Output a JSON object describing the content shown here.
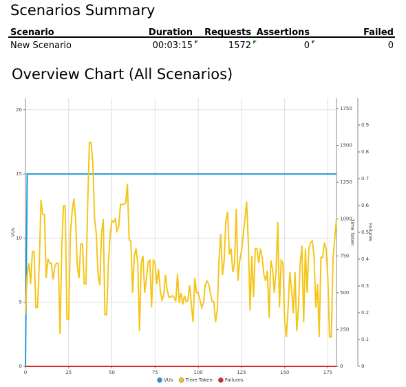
{
  "summary": {
    "title": "Scenarios Summary",
    "columns": [
      "Scenario",
      "Duration",
      "Requests",
      "Assertions",
      "Failed"
    ],
    "rows": [
      [
        "New Scenario",
        "00:03:15",
        "1572",
        "0",
        "0"
      ]
    ]
  },
  "chart_data": {
    "type": "line",
    "title": "Overview Chart (All Scenarios)",
    "y_label": "VUs",
    "y2_label": "Time Taken",
    "y3_label": "Failures",
    "xlim": [
      0,
      180
    ],
    "xticks": [
      0,
      25,
      50,
      75,
      100,
      125,
      150,
      175
    ],
    "ylim": [
      0,
      20.9
    ],
    "yticks": [
      0,
      5,
      10,
      15,
      20
    ],
    "y2lim": [
      0,
      1820
    ],
    "y2ticks": [
      0,
      250,
      500,
      750,
      1000,
      1250,
      1500,
      1750
    ],
    "y3lim": [
      0,
      1
    ],
    "y3ticks": [
      0,
      0.1,
      0.2,
      0.3,
      0.4,
      0.5,
      0.6,
      0.7,
      0.8,
      0.9
    ],
    "grid": true,
    "legend": "bottom",
    "series": [
      {
        "name": "VUs",
        "color": "#1e9bd7",
        "axis": "y",
        "x": [
          0,
          1,
          180
        ],
        "values": [
          0,
          15,
          15
        ]
      },
      {
        "name": "Time Taken",
        "color": "#f5c518",
        "axis": "y2",
        "x": [
          0,
          1,
          2,
          3,
          4,
          5,
          6,
          7,
          8,
          9,
          10,
          11,
          12,
          13,
          14,
          15,
          16,
          17,
          18,
          19,
          20,
          21,
          22,
          23,
          24,
          25,
          26,
          27,
          28,
          29,
          30,
          31,
          32,
          33,
          34,
          35,
          36,
          37,
          38,
          39,
          40,
          41,
          42,
          43,
          44,
          45,
          46,
          47,
          48,
          49,
          50,
          51,
          52,
          53,
          54,
          55,
          56,
          57,
          58,
          59,
          60,
          61,
          62,
          63,
          64,
          65,
          66,
          67,
          68,
          69,
          70,
          71,
          72,
          73,
          74,
          75,
          76,
          77,
          78,
          79,
          80,
          81,
          82,
          83,
          84,
          85,
          86,
          87,
          88,
          89,
          90,
          91,
          92,
          93,
          94,
          95,
          96,
          97,
          98,
          99,
          100,
          101,
          102,
          103,
          104,
          105,
          106,
          107,
          108,
          109,
          110,
          111,
          112,
          113,
          114,
          115,
          116,
          117,
          118,
          119,
          120,
          121,
          122,
          123,
          124,
          125,
          126,
          127,
          128,
          129,
          130,
          131,
          132,
          133,
          134,
          135,
          136,
          137,
          138,
          139,
          140,
          141,
          142,
          143,
          144,
          145,
          146,
          147,
          148,
          149,
          150,
          151,
          152,
          153,
          154,
          155,
          156,
          157,
          158,
          159,
          160,
          161,
          162,
          163,
          164,
          165,
          166,
          167,
          168,
          169,
          170,
          171,
          172,
          173,
          174,
          175,
          176,
          177,
          178,
          179,
          180
        ],
        "values": [
          350,
          620,
          700,
          560,
          780,
          780,
          400,
          400,
          700,
          1130,
          1030,
          1030,
          600,
          730,
          700,
          700,
          590,
          680,
          700,
          700,
          220,
          800,
          1090,
          1090,
          320,
          320,
          900,
          1050,
          1140,
          1000,
          680,
          600,
          830,
          830,
          560,
          560,
          1100,
          1520,
          1520,
          1380,
          1000,
          900,
          620,
          550,
          900,
          1000,
          350,
          350,
          700,
          890,
          990,
          980,
          1000,
          920,
          950,
          1100,
          1100,
          1100,
          1110,
          1240,
          860,
          850,
          500,
          750,
          800,
          700,
          240,
          700,
          750,
          500,
          600,
          710,
          720,
          400,
          720,
          700,
          560,
          660,
          520,
          450,
          480,
          620,
          520,
          470,
          470,
          480,
          470,
          440,
          630,
          430,
          500,
          420,
          480,
          440,
          450,
          550,
          420,
          300,
          600,
          500,
          500,
          450,
          400,
          430,
          550,
          580,
          560,
          500,
          440,
          440,
          300,
          380,
          720,
          900,
          620,
          720,
          990,
          1050,
          760,
          800,
          640,
          700,
          1070,
          580,
          720,
          780,
          890,
          1000,
          1120,
          830,
          380,
          750,
          470,
          800,
          800,
          700,
          800,
          740,
          620,
          580,
          650,
          330,
          720,
          660,
          500,
          640,
          980,
          400,
          720,
          700,
          310,
          200,
          400,
          640,
          520,
          360,
          640,
          240,
          400,
          700,
          820,
          300,
          800,
          500,
          800,
          840,
          850,
          750,
          400,
          560,
          200,
          740,
          740,
          840,
          800,
          600,
          200,
          200,
          740,
          870,
          1000
        ]
      },
      {
        "name": "Failures",
        "color": "#d62728",
        "axis": "y3",
        "x": [
          0,
          180
        ],
        "values": [
          0,
          0
        ]
      }
    ]
  }
}
